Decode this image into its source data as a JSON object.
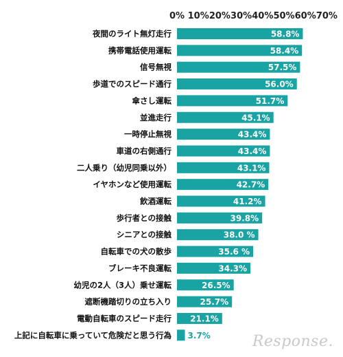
{
  "chart_data": {
    "type": "bar",
    "orientation": "horizontal",
    "xlim": [
      0,
      60
    ],
    "xticks": [
      "0%",
      "10%",
      "20%",
      "30%",
      "40%",
      "50%",
      "60%",
      "70%"
    ],
    "bar_color": "#1aa3a3",
    "categories": [
      "夜間のライト無灯走行",
      "携帯電話使用運転",
      "信号無視",
      "歩道でのスピード通行",
      "傘さし運転",
      "並進走行",
      "一時停止無視",
      "車道の右側通行",
      "二人乗り（幼児同乗以外）",
      "イヤホンなど使用運転",
      "飲酒運転",
      "歩行者との接触",
      "シニアとの接触",
      "自転車での犬の散歩",
      "ブレーキ不良運転",
      "幼児の2人（3人）乗せ運転",
      "遮断機踏切りの立ち入り",
      "電動自転車のスピード走行",
      "上記に自転車に乗っていて危険だと思う行為"
    ],
    "values": [
      58.8,
      58.4,
      57.5,
      56.0,
      51.7,
      45.1,
      43.4,
      43.4,
      43.1,
      42.7,
      41.2,
      39.8,
      38.0,
      35.6,
      34.3,
      26.5,
      25.7,
      21.1,
      3.7
    ],
    "value_labels": [
      "58.8%",
      "58.4%",
      "57.5%",
      "56.0%",
      "51.7%",
      "45.1%",
      "43.4%",
      "43.4%",
      "43.1%",
      "42.7%",
      "41.2%",
      "39.8%",
      "38.0 %",
      "35.6 %",
      "34.3%",
      "26.5%",
      "25.7%",
      "21.1%",
      "3.7%"
    ]
  },
  "watermark": "Response."
}
